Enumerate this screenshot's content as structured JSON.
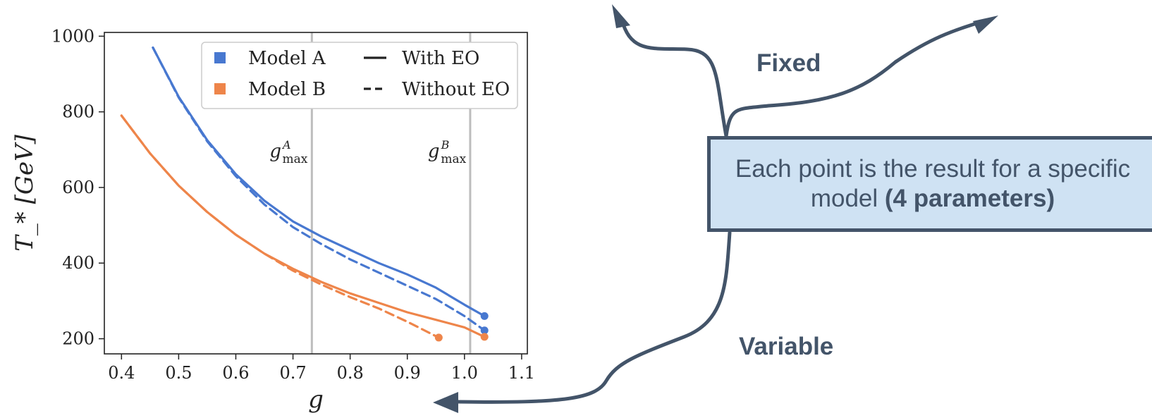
{
  "colors": {
    "model_a": "#4878d0",
    "model_b": "#ee854a",
    "vline": "#bdbdbd",
    "annotation": "#435469",
    "box_fill": "#cfe2f3"
  },
  "chart_data": {
    "type": "line",
    "xlabel": "g",
    "ylabel": "T_* [GeV]",
    "xlim": [
      0.37,
      1.11
    ],
    "ylim": [
      160,
      1010
    ],
    "xticks": [
      0.4,
      0.5,
      0.6,
      0.7,
      0.8,
      0.9,
      1.0,
      1.1
    ],
    "xtick_labels": [
      "0.4",
      "0.5",
      "0.6",
      "0.7",
      "0.8",
      "0.9",
      "1.0",
      "1.1"
    ],
    "yticks": [
      200,
      400,
      600,
      800,
      1000
    ],
    "ytick_labels": [
      "200",
      "400",
      "600",
      "800",
      "1000"
    ],
    "grid": false,
    "legend_position": "top-right",
    "legend": {
      "models": [
        {
          "label": "Model A",
          "color": "#4878d0"
        },
        {
          "label": "Model B",
          "color": "#ee854a"
        }
      ],
      "styles": [
        {
          "label": "With EO",
          "dash": "solid"
        },
        {
          "label": "Without EO",
          "dash": "dashed"
        }
      ]
    },
    "vlines": [
      {
        "x": 0.733,
        "label": "g",
        "sup": "A",
        "sub": "max"
      },
      {
        "x": 1.01,
        "label": "g",
        "sup": "B",
        "sub": "max"
      }
    ],
    "series": [
      {
        "model": "A",
        "style": "solid",
        "color": "#4878d0",
        "x": [
          0.455,
          0.5,
          0.55,
          0.6,
          0.65,
          0.7,
          0.75,
          0.8,
          0.85,
          0.9,
          0.95,
          1.0,
          1.035
        ],
        "y": [
          970,
          840,
          725,
          635,
          565,
          510,
          470,
          435,
          400,
          370,
          335,
          290,
          260
        ],
        "end_marker": true
      },
      {
        "model": "A",
        "style": "dashed",
        "color": "#4878d0",
        "x": [
          0.455,
          0.5,
          0.55,
          0.6,
          0.65,
          0.7,
          0.75,
          0.8,
          0.85,
          0.9,
          0.95,
          1.0,
          1.035
        ],
        "y": [
          970,
          838,
          722,
          630,
          555,
          495,
          450,
          410,
          375,
          340,
          305,
          260,
          222
        ],
        "end_marker": true
      },
      {
        "model": "B",
        "style": "solid",
        "color": "#ee854a",
        "x": [
          0.4,
          0.45,
          0.5,
          0.55,
          0.6,
          0.65,
          0.7,
          0.75,
          0.8,
          0.85,
          0.9,
          0.95,
          1.0,
          1.035
        ],
        "y": [
          790,
          690,
          605,
          535,
          475,
          425,
          385,
          350,
          320,
          295,
          270,
          250,
          230,
          205
        ],
        "end_marker": true
      },
      {
        "model": "B",
        "style": "dashed",
        "color": "#ee854a",
        "x": [
          0.4,
          0.45,
          0.5,
          0.55,
          0.6,
          0.65,
          0.7,
          0.75,
          0.8,
          0.85,
          0.9,
          0.955
        ],
        "y": [
          790,
          690,
          605,
          535,
          475,
          425,
          380,
          343,
          310,
          280,
          245,
          203
        ],
        "end_marker": true
      }
    ]
  },
  "annotation": {
    "box_text_plain": "Each point is the result for a specific model",
    "box_text_bold": "(4 parameters)",
    "fixed_label": "Fixed",
    "variable_label": "Variable"
  }
}
